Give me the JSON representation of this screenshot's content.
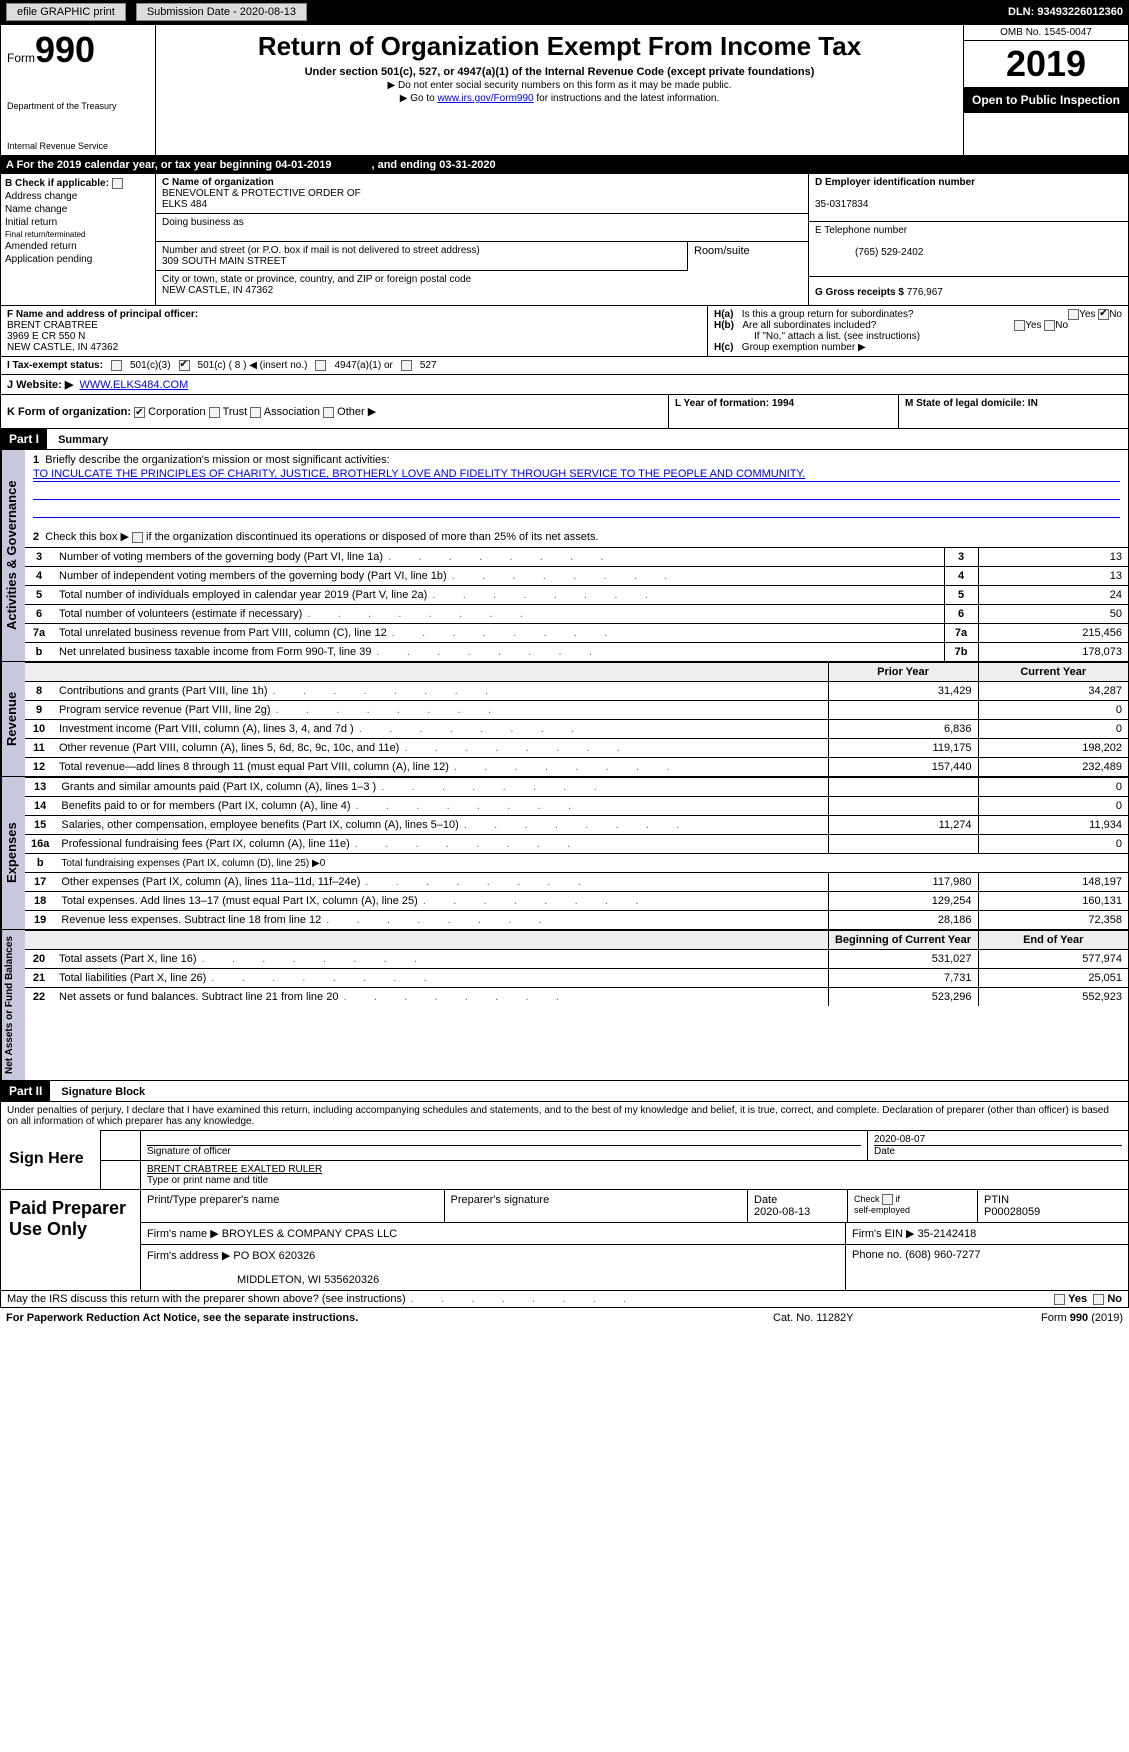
{
  "topbar": {
    "efile_label": "efile GRAPHIC print",
    "submission_label": "Submission Date - 2020-08-13",
    "dln": "DLN: 93493226012360"
  },
  "header": {
    "form_prefix": "Form",
    "form_no": "990",
    "dept1": "Department of the Treasury",
    "dept2": "Internal Revenue Service",
    "title": "Return of Organization Exempt From Income Tax",
    "subtitle": "Under section 501(c), 527, or 4947(a)(1) of the Internal Revenue Code (except private foundations)",
    "note1": "▶ Do not enter social security numbers on this form as it may be made public.",
    "note2_pre": "▶ Go to ",
    "note2_link": "www.irs.gov/Form990",
    "note2_post": " for instructions and the latest information.",
    "omb": "OMB No. 1545-0047",
    "year": "2019",
    "open": "Open to Public Inspection"
  },
  "period": {
    "prefix": "A   For the 2019 calendar year, or tax year beginning 04-01-2019",
    "mid": ", and ending 03-31-2020"
  },
  "boxB": {
    "label": "B Check if applicable:",
    "addr_change": "Address change",
    "name_change": "Name change",
    "initial": "Initial return",
    "final": "Final return/terminated",
    "amended": "Amended return",
    "pending": "Application pending"
  },
  "boxC": {
    "label": "C Name of organization",
    "name1": "BENEVOLENT & PROTECTIVE ORDER OF",
    "name2": "ELKS 484",
    "dba_label": "Doing business as",
    "addr_label": "Number and street (or P.O. box if mail is not delivered to street address)",
    "addr": "309 SOUTH MAIN STREET",
    "room_label": "Room/suite",
    "city_label": "City or town, state or province, country, and ZIP or foreign postal code",
    "city": "NEW CASTLE, IN  47362"
  },
  "boxD": {
    "label": "D Employer identification number",
    "ein": "35-0317834"
  },
  "boxE": {
    "label": "E Telephone number",
    "phone": "(765) 529-2402"
  },
  "boxG": {
    "label": "G Gross receipts $",
    "amount": "776,967"
  },
  "boxF": {
    "label": "F Name and address of principal officer:",
    "name": "BRENT CRABTREE",
    "addr1": "3969 E CR 550 N",
    "addr2": "NEW CASTLE, IN  47362"
  },
  "boxH": {
    "ha_label": "H(a)",
    "ha_text": "Is this a group return for subordinates?",
    "hb_label": "H(b)",
    "hb_text": "Are all subordinates included?",
    "hb_note": "If \"No,\" attach a list. (see instructions)",
    "hc_label": "H(c)",
    "hc_text": "Group exemption number ▶",
    "yes": "Yes",
    "no": "No"
  },
  "boxI": {
    "label": "I    Tax-exempt status:",
    "c3": "501(c)(3)",
    "c_other": "501(c) ( 8 ) ◀ (insert no.)",
    "a1": "4947(a)(1) or",
    "s527": "527"
  },
  "boxJ": {
    "label": "J   Website: ▶",
    "url": "WWW.ELKS484.COM"
  },
  "boxK": {
    "label": "K Form of organization:",
    "corp": "Corporation",
    "trust": "Trust",
    "assoc": "Association",
    "other": "Other ▶"
  },
  "boxL": {
    "label": "L Year of formation: 1994"
  },
  "boxM": {
    "label": "M State of legal domicile: IN"
  },
  "partI": {
    "badge": "Part I",
    "title": "Summary"
  },
  "summary": {
    "q1_label": "1",
    "q1_text": "Briefly describe the organization's mission or most significant activities:",
    "q1_mission": "TO INCULCATE THE PRINCIPLES OF CHARITY, JUSTICE, BROTHERLY LOVE AND FIDELITY THROUGH SERVICE TO THE PEOPLE AND COMMUNITY.",
    "q2_label": "2",
    "q2_text": "Check this box ▶        if the organization discontinued its operations or disposed of more than 25% of its net assets.",
    "rows_gov": [
      {
        "n": "3",
        "t": "Number of voting members of the governing body (Part VI, line 1a)",
        "k": "3",
        "v": "13"
      },
      {
        "n": "4",
        "t": "Number of independent voting members of the governing body (Part VI, line 1b)",
        "k": "4",
        "v": "13"
      },
      {
        "n": "5",
        "t": "Total number of individuals employed in calendar year 2019 (Part V, line 2a)",
        "k": "5",
        "v": "24"
      },
      {
        "n": "6",
        "t": "Total number of volunteers (estimate if necessary)",
        "k": "6",
        "v": "50"
      },
      {
        "n": "7a",
        "t": "Total unrelated business revenue from Part VIII, column (C), line 12",
        "k": "7a",
        "v": "215,456"
      },
      {
        "n": "b",
        "t": "Net unrelated business taxable income from Form 990-T, line 39",
        "k": "7b",
        "v": "178,073"
      }
    ],
    "col_hdr_prior": "Prior Year",
    "col_hdr_curr": "Current Year",
    "rows_rev": [
      {
        "n": "8",
        "t": "Contributions and grants (Part VIII, line 1h)",
        "p": "31,429",
        "c": "34,287"
      },
      {
        "n": "9",
        "t": "Program service revenue (Part VIII, line 2g)",
        "p": "",
        "c": "0"
      },
      {
        "n": "10",
        "t": "Investment income (Part VIII, column (A), lines 3, 4, and 7d )",
        "p": "6,836",
        "c": "0"
      },
      {
        "n": "11",
        "t": "Other revenue (Part VIII, column (A), lines 5, 6d, 8c, 9c, 10c, and 11e)",
        "p": "119,175",
        "c": "198,202"
      },
      {
        "n": "12",
        "t": "Total revenue—add lines 8 through 11 (must equal Part VIII, column (A), line 12)",
        "p": "157,440",
        "c": "232,489"
      }
    ],
    "rows_exp": [
      {
        "n": "13",
        "t": "Grants and similar amounts paid (Part IX, column (A), lines 1–3 )",
        "p": "",
        "c": "0"
      },
      {
        "n": "14",
        "t": "Benefits paid to or for members (Part IX, column (A), line 4)",
        "p": "",
        "c": "0"
      },
      {
        "n": "15",
        "t": "Salaries, other compensation, employee benefits (Part IX, column (A), lines 5–10)",
        "p": "11,274",
        "c": "11,934"
      },
      {
        "n": "16a",
        "t": "Professional fundraising fees (Part IX, column (A), line 11e)",
        "p": "",
        "c": "0"
      },
      {
        "n": "b",
        "t": "Total fundraising expenses (Part IX, column (D), line 25) ▶0",
        "p": "-",
        "c": "-"
      },
      {
        "n": "17",
        "t": "Other expenses (Part IX, column (A), lines 11a–11d, 11f–24e)",
        "p": "117,980",
        "c": "148,197"
      },
      {
        "n": "18",
        "t": "Total expenses. Add lines 13–17 (must equal Part IX, column (A), line 25)",
        "p": "129,254",
        "c": "160,131"
      },
      {
        "n": "19",
        "t": "Revenue less expenses. Subtract line 18 from line 12",
        "p": "28,186",
        "c": "72,358"
      }
    ],
    "col_hdr_beg": "Beginning of Current Year",
    "col_hdr_end": "End of Year",
    "rows_net": [
      {
        "n": "20",
        "t": "Total assets (Part X, line 16)",
        "p": "531,027",
        "c": "577,974"
      },
      {
        "n": "21",
        "t": "Total liabilities (Part X, line 26)",
        "p": "7,731",
        "c": "25,051"
      },
      {
        "n": "22",
        "t": "Net assets or fund balances. Subtract line 21 from line 20",
        "p": "523,296",
        "c": "552,923"
      }
    ]
  },
  "sidetabs": {
    "gov": "Activities & Governance",
    "rev": "Revenue",
    "exp": "Expenses",
    "net": "Net Assets or Fund Balances"
  },
  "partII": {
    "badge": "Part II",
    "title": "Signature Block"
  },
  "sig": {
    "penalty": "Under penalties of perjury, I declare that I have examined this return, including accompanying schedules and statements, and to the best of my knowledge and belief, it is true, correct, and complete. Declaration of preparer (other than officer) is based on all information of which preparer has any knowledge.",
    "sign_here": "Sign Here",
    "sig_officer": "Signature of officer",
    "date_label": "Date",
    "sig_date": "2020-08-07",
    "name_title": "BRENT CRABTREE EXALTED RULER",
    "name_title_label": "Type or print name and title"
  },
  "paid": {
    "label": "Paid Preparer Use Only",
    "print_label": "Print/Type preparer's name",
    "prep_sig_label": "Preparer's signature",
    "date_label": "Date",
    "date": "2020-08-13",
    "check_label": "Check        if self-employed",
    "ptin_label": "PTIN",
    "ptin": "P00028059",
    "firm_name_label": "Firm's name    ▶",
    "firm_name": "BROYLES & COMPANY CPAS LLC",
    "firm_ein_label": "Firm's EIN ▶",
    "firm_ein": "35-2142418",
    "firm_addr_label": "Firm's address ▶",
    "firm_addr1": "PO BOX 620326",
    "firm_addr2": "MIDDLETON, WI  535620326",
    "phone_label": "Phone no.",
    "phone": "(608) 960-7277"
  },
  "footer": {
    "discuss": "May the IRS discuss this return with the preparer shown above? (see instructions)",
    "yes": "Yes",
    "no": "No",
    "pra": "For Paperwork Reduction Act Notice, see the separate instructions.",
    "cat": "Cat. No. 11282Y",
    "formno": "Form 990 (2019)"
  }
}
